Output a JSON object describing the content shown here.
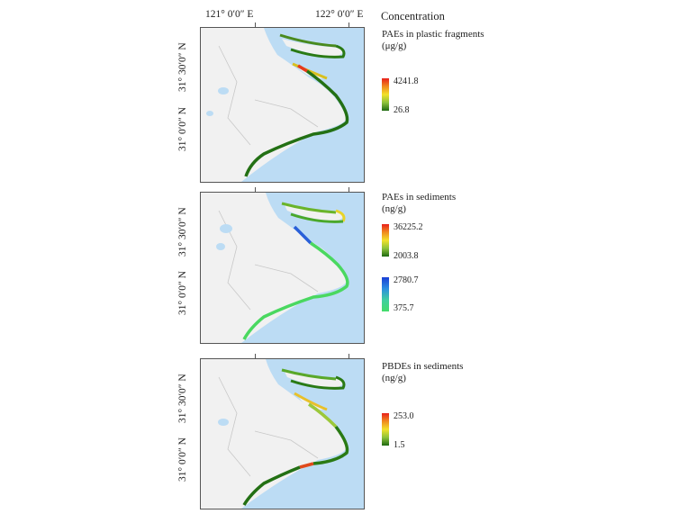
{
  "header": {
    "title": "Concentration"
  },
  "axes": {
    "lon_labels": [
      "121° 0′0″ E",
      "122° 0′0″ E"
    ],
    "lat_labels": [
      "31° 30′0″ N",
      "31° 0′0″ N"
    ]
  },
  "panels": [
    {
      "title_lines": [
        "PAEs in plastic fragments",
        "(μg/g)"
      ],
      "colorbars": [
        {
          "max": "4241.8",
          "min": "26.8",
          "ramp": [
            "#e8211c",
            "#f08a1e",
            "#f2e12a",
            "#8cc23a",
            "#1f6a12"
          ]
        }
      ]
    },
    {
      "title_lines": [
        "PAEs in sediments",
        "(ng/g)"
      ],
      "colorbars": [
        {
          "max": "36225.2",
          "min": "2003.8",
          "ramp": [
            "#e8211c",
            "#f08a1e",
            "#f2e12a",
            "#8cc23a",
            "#1f6a12"
          ]
        },
        {
          "max": "2780.7",
          "min": "375.7",
          "ramp": [
            "#1a3fd6",
            "#2a8ee0",
            "#3fcfa0",
            "#44dc6a"
          ]
        }
      ]
    },
    {
      "title_lines": [
        "PBDEs in sediments",
        "(ng/g)"
      ],
      "colorbars": [
        {
          "max": "253.0",
          "min": "1.5",
          "ramp": [
            "#e8211c",
            "#f08a1e",
            "#f2e12a",
            "#8cc23a",
            "#1f6a12"
          ]
        }
      ]
    }
  ],
  "colors": {
    "land": "#f1f1f1",
    "water": "#bcdcf4",
    "border": "#c8c8c8"
  }
}
